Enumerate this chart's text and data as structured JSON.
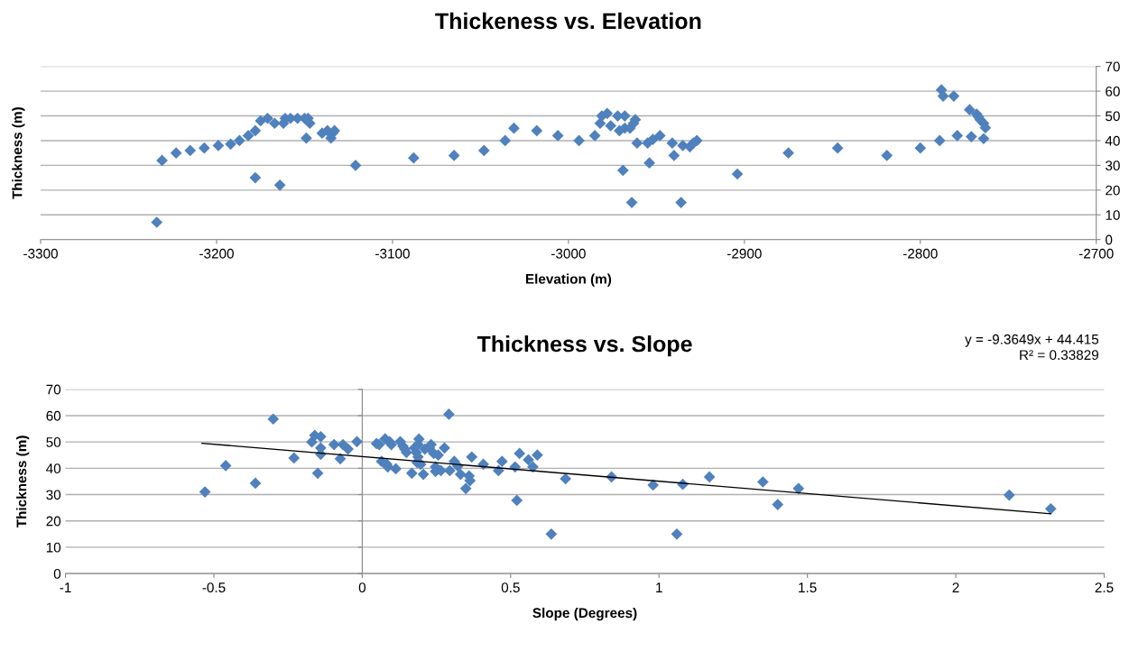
{
  "chart_data": [
    {
      "type": "scatter",
      "title": "Thickeness vs. Elevation",
      "xlabel": "Elevation (m)",
      "ylabel": "Thickness (m)",
      "marker": "diamond",
      "grid": "y",
      "xlim": [
        -3300,
        -2700
      ],
      "xticks": [
        -3300,
        -3200,
        -3100,
        -3000,
        -2900,
        -2800,
        -2700
      ],
      "ylim": [
        0,
        70
      ],
      "yticks": [
        0,
        10,
        20,
        30,
        40,
        50,
        60,
        70
      ],
      "series": [
        {
          "color": "#4f81bd",
          "x": [
            -3234,
            -3231,
            -3223,
            -3215,
            -3207,
            -3199,
            -3192,
            -3187,
            -3182,
            -3178,
            -3175,
            -3171,
            -3167,
            -3178,
            -3164,
            -3162,
            -3161,
            -3158,
            -3154,
            -3150,
            -3148,
            -3147,
            -3149,
            -3140,
            -3137,
            -3135,
            -3134,
            -3133,
            -3121,
            -3088,
            -3065,
            -3048,
            -3036,
            -3031,
            -3018,
            -3006,
            -2994,
            -2985,
            -2982,
            -2981,
            -2978,
            -2976,
            -2972,
            -2968,
            -2971,
            -2968,
            -2965,
            -2963,
            -2962,
            -2961,
            -2969,
            -2964,
            -2955,
            -2952,
            -2948,
            -2954,
            -2941,
            -2940,
            -2936,
            -2935,
            -2931,
            -2929,
            -2927,
            -2904,
            -2875,
            -2847,
            -2819,
            -2800,
            -2789,
            -2788,
            -2787,
            -2781,
            -2779,
            -2772,
            -2771,
            -2768,
            -2767,
            -2766,
            -2764,
            -2763,
            -2764
          ],
          "values": [
            7,
            32,
            35,
            36,
            37,
            38,
            38.6,
            40,
            42,
            44,
            48,
            49,
            47,
            25,
            22,
            47,
            49,
            49,
            49,
            49,
            49,
            47,
            41,
            43,
            44,
            41,
            43,
            44,
            30,
            33,
            34,
            36,
            40,
            45,
            44,
            42,
            40,
            42,
            47,
            50,
            51,
            46,
            50,
            50,
            44,
            45,
            45,
            47,
            48.5,
            39,
            28,
            15,
            39,
            40.5,
            42,
            31,
            39,
            34,
            15,
            38,
            37.5,
            39,
            40,
            26.5,
            35,
            37,
            34,
            37,
            40,
            60.5,
            58,
            58,
            42,
            52.5,
            41.6,
            50.7,
            49.6,
            48.5,
            47,
            45.2,
            40.8
          ]
        }
      ]
    },
    {
      "type": "scatter",
      "title": "Thickness vs. Slope",
      "xlabel": "Slope (Degrees)",
      "ylabel": "Thickness (m)",
      "marker": "diamond",
      "grid": "y",
      "xlim": [
        -1,
        2.5
      ],
      "xticks": [
        -1,
        -0.5,
        0,
        0.5,
        1,
        1.5,
        2,
        2.5
      ],
      "ylim": [
        0,
        70
      ],
      "yticks": [
        0,
        10,
        20,
        30,
        40,
        50,
        60,
        70
      ],
      "annotations": [
        "y = -9.3649x + 44.415",
        "R² = 0.33829"
      ],
      "series": [
        {
          "color": "#4f81bd",
          "x": [
            -0.53,
            -0.46,
            -0.36,
            -0.3,
            -0.23,
            -0.17,
            -0.16,
            -0.14,
            -0.14,
            -0.14,
            -0.15,
            -0.095,
            -0.074,
            -0.065,
            -0.048,
            -0.018,
            0.048,
            0.057,
            0.065,
            0.077,
            0.083,
            0.086,
            0.092,
            0.098,
            0.113,
            0.128,
            0.137,
            0.143,
            0.149,
            0.167,
            0.176,
            0.182,
            0.188,
            0.191,
            0.188,
            0.185,
            0.197,
            0.206,
            0.211,
            0.226,
            0.232,
            0.241,
            0.247,
            0.256,
            0.247,
            0.265,
            0.277,
            0.292,
            0.295,
            0.31,
            0.322,
            0.331,
            0.349,
            0.36,
            0.363,
            0.369,
            0.408,
            0.459,
            0.471,
            0.515,
            0.521,
            0.53,
            0.56,
            0.575,
            0.59,
            0.637,
            0.685,
            0.84,
            0.98,
            1.06,
            1.08,
            1.17,
            1.35,
            1.4,
            1.47,
            2.18,
            2.32
          ],
          "values": [
            31,
            41,
            34.3,
            58.7,
            43.9,
            50,
            52.5,
            52,
            47.7,
            45.3,
            38.1,
            49,
            43.6,
            49,
            47.3,
            50.1,
            49.4,
            49,
            42.6,
            51.2,
            41.5,
            40.5,
            50.1,
            49,
            39.8,
            50.1,
            48.4,
            47.3,
            46,
            38.1,
            47.7,
            46,
            49,
            51.1,
            44.3,
            42.2,
            41.5,
            37.7,
            47.3,
            47.7,
            49,
            45.6,
            40.5,
            45,
            38.8,
            39.1,
            47.7,
            60.5,
            39.1,
            42.6,
            40.8,
            37.7,
            32.3,
            37.1,
            35.3,
            44.3,
            41.5,
            39.1,
            42.6,
            40.5,
            27.8,
            45.6,
            43.2,
            40.5,
            45,
            15,
            36,
            36.7,
            33.6,
            15,
            33.9,
            36.7,
            34.8,
            26.2,
            32.3,
            29.8,
            24.6
          ]
        },
        {
          "type": "line",
          "marker": "none",
          "color": "#000000",
          "x": [
            -0.54,
            2.32
          ],
          "values": [
            49.5,
            22.7
          ]
        }
      ]
    }
  ]
}
